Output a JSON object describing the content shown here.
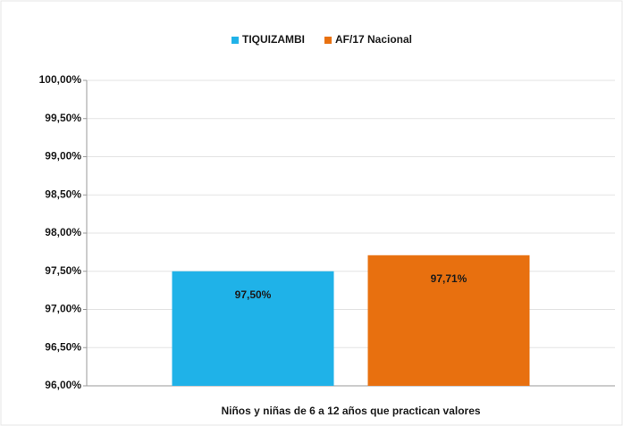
{
  "chart_data": {
    "type": "bar",
    "categories": [
      "Niños y niñas de 6 a 12 años que practican valores"
    ],
    "series": [
      {
        "name": "TIQUIZAMBI",
        "color": "#1fb2e8",
        "values": [
          97.5
        ],
        "value_labels": [
          "97,50%"
        ]
      },
      {
        "name": "AF/17 Nacional",
        "color": "#e8700f",
        "values": [
          97.71
        ],
        "value_labels": [
          "97,71%"
        ]
      }
    ],
    "ylim": [
      96,
      100
    ],
    "yticks": [
      {
        "value": 96,
        "label": "96,00%"
      },
      {
        "value": 96.5,
        "label": "96,50%"
      },
      {
        "value": 97,
        "label": "97,00%"
      },
      {
        "value": 97.5,
        "label": "97,50%"
      },
      {
        "value": 98,
        "label": "98,00%"
      },
      {
        "value": 98.5,
        "label": "98,50%"
      },
      {
        "value": 99,
        "label": "99,00%"
      },
      {
        "value": 99.5,
        "label": "99,50%"
      },
      {
        "value": 100,
        "label": "100,00%"
      }
    ],
    "grid": true,
    "legend": "top"
  }
}
